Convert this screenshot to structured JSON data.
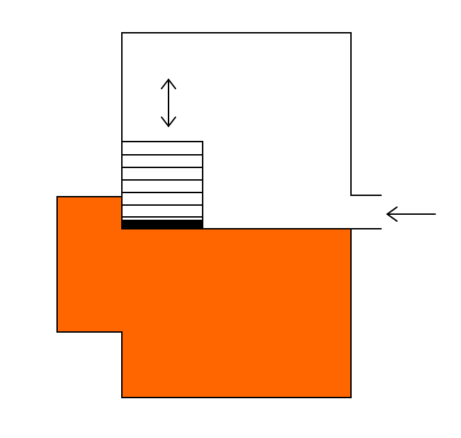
{
  "diagram": {
    "colors": {
      "background": "#ffffff",
      "stroke": "#000000",
      "block_fill": "#ff6600",
      "stack_fill": "#ffffff",
      "base_layer": "#000000"
    },
    "elements": {
      "chamber": "open-chamber-outline",
      "block": "orange-stepped-block",
      "stack": "striped-layer-stack",
      "vertical_arrow": "double-headed-vertical-arrow",
      "horizontal_arrow": "left-pointing-arrow"
    }
  }
}
